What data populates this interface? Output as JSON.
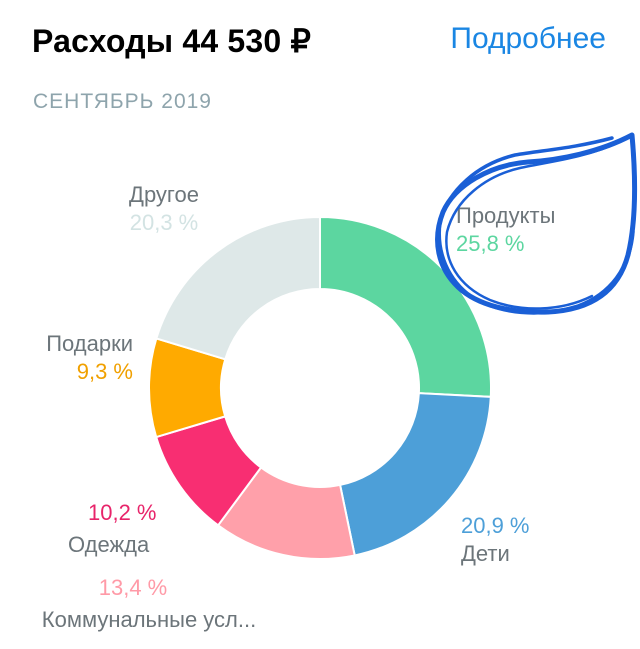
{
  "header": {
    "title": "Расходы 44 530 ₽",
    "more_link": "Подробнее",
    "period": "СЕНТЯБРЬ 2019"
  },
  "chart_data": {
    "type": "pie",
    "categories": [
      "Продукты",
      "Дети",
      "Коммунальные усл...",
      "Одежда",
      "Подарки",
      "Другое"
    ],
    "values": [
      25.8,
      20.9,
      13.4,
      10.2,
      9.3,
      20.3
    ],
    "labels": [
      "25,8 %",
      "20,9 %",
      "13,4 %",
      "10,2 %",
      "9,3 %",
      "20,3 %"
    ],
    "colors": [
      "#5cd6a0",
      "#4d9fd8",
      "#ffa0aa",
      "#f82e72",
      "#ffaa00",
      "#dee8e8"
    ]
  },
  "colors": {
    "accent": "#1a86e3",
    "scribble": "#1a5fd6"
  }
}
